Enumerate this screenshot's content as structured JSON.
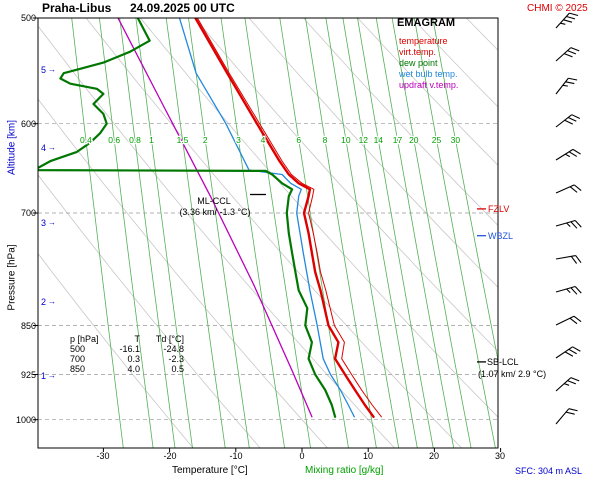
{
  "header": {
    "station": "Praha-Libus",
    "datetime": "24.09.2025 00 UTC",
    "copyright": "CHMI © 2025"
  },
  "legend": {
    "title": "EMAGRAM",
    "items": [
      {
        "label": "temperature",
        "color": "#dd0000"
      },
      {
        "label": "virt.temp.",
        "color": "#dd0000"
      },
      {
        "label": "dew point",
        "color": "#007700"
      },
      {
        "label": "wet bulb temp.",
        "color": "#2288dd"
      },
      {
        "label": "updraft v.temp.",
        "color": "#bb00bb"
      }
    ]
  },
  "axes": {
    "pressure_title": "Pressure [hPa]",
    "altitude_title": "Altitude [km]",
    "pressure_ticks": [
      "500",
      "600",
      "700",
      "850",
      "925",
      "1000"
    ],
    "altitude_ticks": [
      "5",
      "4",
      "3",
      "2",
      "1"
    ],
    "temperature_ticks": [
      "-30",
      "-20",
      "-10",
      "0",
      "10",
      "20",
      "30"
    ],
    "x_title": "Temperature [°C]",
    "mixing_title": "Mixing ratio [g/kg]"
  },
  "icons": {
    "altitude_arrow": "→"
  },
  "mixing": {
    "labels": [
      "0.4",
      "0.6",
      "0.8",
      "1",
      "1.5",
      "2",
      "3",
      "4",
      "6",
      "8",
      "10",
      "12",
      "14",
      "17",
      "20",
      "25",
      "30"
    ]
  },
  "annotations": {
    "ml_ccl_line1": "ML-CCL",
    "ml_ccl_line2": "(3.36 km/ -1.3 °C)",
    "fzlv": "FZLV",
    "wbzl": "WBZL",
    "sb_lcl_line1": "SB-LCL",
    "sb_lcl_line2": "(1.07 km/ 2.9 °C)"
  },
  "table": {
    "headers": [
      "p [hPa]",
      "T",
      "Td [°C]"
    ],
    "rows": [
      [
        "500",
        "-16.1",
        "-24.8"
      ],
      [
        "700",
        "0.3",
        "-2.3"
      ],
      [
        "850",
        "4.0",
        "0.5"
      ]
    ]
  },
  "footer": {
    "sfc": "SFC: 304 m ASL"
  },
  "colors": {
    "temperature": "#dd0000",
    "virtual_temperature": "#dd0000",
    "dew_point": "#007700",
    "wet_bulb": "#2288dd",
    "updraft": "#bb00bb",
    "mixing_lines": "#55b055",
    "mixing_labels": "#00a000",
    "altitude_axis": "#0000cc",
    "sfc_text": "#0000cc",
    "copyright": "#dd0000",
    "dry_adiabats": "#c8c8c8",
    "gridlines": "#999999"
  },
  "chart_data": {
    "type": "line",
    "title": "Emagram sounding Praha-Libus 24.09.2025 00 UTC",
    "x_axis": {
      "label": "Temperature [°C]",
      "ticks": [
        -30,
        -20,
        -10,
        0,
        10,
        20,
        30
      ],
      "range_c": [
        -39.9,
        29.6
      ]
    },
    "y_axis": {
      "label": "Pressure [hPa]",
      "ticks": [
        500,
        600,
        700,
        850,
        925,
        1000
      ],
      "range_hpa": [
        500,
        1050
      ],
      "scale": "log"
    },
    "altitude_ticks_km": [
      5,
      4,
      3,
      2,
      1
    ],
    "grid": true,
    "legend_position": "top-right",
    "mixing_ratio_lines_g_per_kg": [
      0.4,
      0.6,
      0.8,
      1,
      1.5,
      2,
      3,
      4,
      6,
      8,
      10,
      12,
      14,
      17,
      20,
      25,
      30
    ],
    "dry_adiabats_theta_c": [
      -20,
      -10,
      0,
      10,
      20,
      30,
      40,
      50,
      60,
      70,
      80,
      90
    ],
    "series": [
      {
        "name": "updraft-virtual-temperature",
        "color": "#bb00bb",
        "width": 1.3,
        "points": [
          [
            500,
            -27.8
          ],
          [
            581,
            -21.0
          ],
          [
            679,
            -13.9
          ],
          [
            792,
            -7.3
          ],
          [
            921,
            -1.4
          ],
          [
            995,
            1.5
          ]
        ]
      },
      {
        "name": "wet-bulb-temperature",
        "color": "#2288dd",
        "width": 1.3,
        "points": [
          [
            500,
            -18.5
          ],
          [
            550,
            -16.0
          ],
          [
            600,
            -11.5
          ],
          [
            650,
            -8.0
          ],
          [
            655,
            -3.0
          ],
          [
            665,
            -1.7
          ],
          [
            672,
            -0.1
          ],
          [
            680,
            -0.5
          ],
          [
            700,
            -0.8
          ],
          [
            750,
            0.2
          ],
          [
            800,
            1.2
          ],
          [
            850,
            2.3
          ],
          [
            900,
            3.2
          ],
          [
            925,
            4.3
          ],
          [
            950,
            5.8
          ],
          [
            975,
            7.0
          ],
          [
            995,
            7.9
          ]
        ]
      },
      {
        "name": "virtual-temperature",
        "color": "#dd0000",
        "width": 1,
        "points": [
          [
            500,
            -15.8
          ],
          [
            550,
            -11.0
          ],
          [
            600,
            -6.4
          ],
          [
            640,
            -3.0
          ],
          [
            655,
            -1.6
          ],
          [
            665,
            0.0
          ],
          [
            672,
            1.8
          ],
          [
            680,
            1.6
          ],
          [
            700,
            1.0
          ],
          [
            725,
            1.7
          ],
          [
            750,
            2.3
          ],
          [
            775,
            2.8
          ],
          [
            800,
            3.6
          ],
          [
            850,
            4.9
          ],
          [
            875,
            6.4
          ],
          [
            900,
            6.0
          ],
          [
            925,
            7.5
          ],
          [
            950,
            9.0
          ],
          [
            975,
            10.6
          ],
          [
            995,
            12.0
          ]
        ]
      },
      {
        "name": "dew-point",
        "color": "#007700",
        "width": 2.2,
        "points": [
          [
            500,
            -24.8
          ],
          [
            520,
            -23.0
          ],
          [
            530,
            -26.0
          ],
          [
            540,
            -30.0
          ],
          [
            545,
            -33.0
          ],
          [
            550,
            -36.0
          ],
          [
            555,
            -36.5
          ],
          [
            560,
            -35.0
          ],
          [
            565,
            -31.0
          ],
          [
            570,
            -30.0
          ],
          [
            580,
            -31.5
          ],
          [
            590,
            -30.0
          ],
          [
            600,
            -29.5
          ],
          [
            610,
            -30.5
          ],
          [
            620,
            -32.0
          ],
          [
            630,
            -34.0
          ],
          [
            640,
            -38.0
          ],
          [
            648,
            -40.0
          ],
          [
            650,
            -40.0
          ],
          [
            651,
            -5.5
          ],
          [
            655,
            -4.5
          ],
          [
            665,
            -3.0
          ],
          [
            672,
            -1.5
          ],
          [
            680,
            -2.0
          ],
          [
            700,
            -2.3
          ],
          [
            725,
            -2.0
          ],
          [
            750,
            -1.5
          ],
          [
            775,
            -1.0
          ],
          [
            800,
            -0.5
          ],
          [
            825,
            0.8
          ],
          [
            850,
            0.5
          ],
          [
            875,
            1.5
          ],
          [
            900,
            1.0
          ],
          [
            925,
            2.0
          ],
          [
            950,
            3.5
          ],
          [
            975,
            4.5
          ],
          [
            995,
            5.0
          ]
        ]
      },
      {
        "name": "temperature",
        "color": "#dd0000",
        "width": 2.4,
        "points": [
          [
            500,
            -16.1
          ],
          [
            550,
            -11.3
          ],
          [
            600,
            -6.8
          ],
          [
            640,
            -3.4
          ],
          [
            655,
            -2.0
          ],
          [
            665,
            -0.5
          ],
          [
            672,
            1.2
          ],
          [
            680,
            1.0
          ],
          [
            700,
            0.3
          ],
          [
            725,
            1.0
          ],
          [
            750,
            1.5
          ],
          [
            775,
            2.0
          ],
          [
            800,
            2.8
          ],
          [
            850,
            4.0
          ],
          [
            875,
            5.5
          ],
          [
            900,
            5.0
          ],
          [
            925,
            6.5
          ],
          [
            950,
            8.0
          ],
          [
            975,
            9.5
          ],
          [
            995,
            10.8
          ]
        ]
      }
    ],
    "levels": [
      {
        "label": "ML-CCL",
        "pressure_hpa": 678,
        "placement": "mid",
        "color": "#000000"
      },
      {
        "label": "FZLV",
        "pressure_hpa": 695,
        "placement": "right",
        "color": "#dd0000"
      },
      {
        "label": "WBZL",
        "pressure_hpa": 728,
        "placement": "right",
        "color": "#2255dd"
      },
      {
        "label": "SB-LCL",
        "pressure_hpa": 905,
        "placement": "right",
        "color": "#000000"
      }
    ],
    "wind_barbs": [
      {
        "y": 28,
        "rot": 42,
        "full": 3,
        "half": 1
      },
      {
        "y": 61,
        "rot": 48,
        "full": 3,
        "half": 0
      },
      {
        "y": 94,
        "rot": 38,
        "full": 2,
        "half": 1
      },
      {
        "y": 127,
        "rot": 52,
        "full": 3,
        "half": 0
      },
      {
        "y": 160,
        "rot": 58,
        "full": 2,
        "half": 1
      },
      {
        "y": 193,
        "rot": 66,
        "full": 2,
        "half": 0
      },
      {
        "y": 226,
        "rot": 74,
        "full": 2,
        "half": 1
      },
      {
        "y": 259,
        "rot": 80,
        "full": 2,
        "half": 0
      },
      {
        "y": 292,
        "rot": 74,
        "full": 2,
        "half": 1
      },
      {
        "y": 325,
        "rot": 64,
        "full": 2,
        "half": 0
      },
      {
        "y": 358,
        "rot": 56,
        "full": 3,
        "half": 0
      },
      {
        "y": 391,
        "rot": 48,
        "full": 2,
        "half": 1
      },
      {
        "y": 424,
        "rot": 40,
        "full": 2,
        "half": 0
      }
    ]
  }
}
